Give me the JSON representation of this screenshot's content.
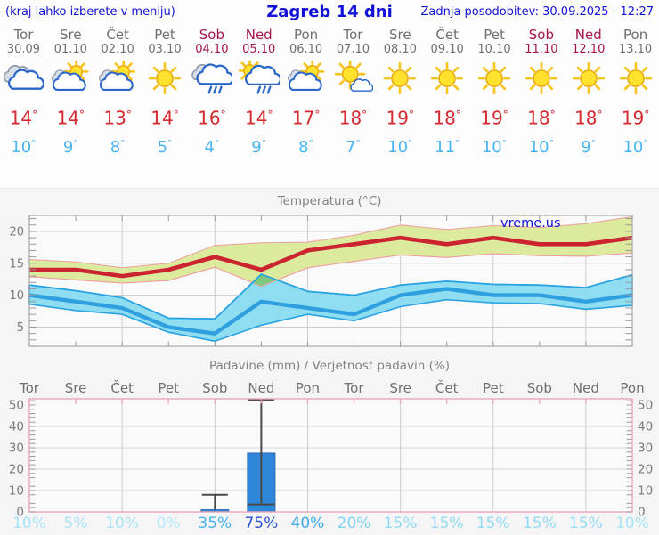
{
  "header": {
    "left_note": "(kraj lahko izberete v meniju)",
    "title": "Zagreb 14 dni",
    "updated": "Zadnja posodobitev: 30.09.2025 - 12:27"
  },
  "deg_mark": "°",
  "colors": {
    "accent_blue": "#1212d6",
    "weekday": "#6f6f6f",
    "weekend": "#a8154e",
    "temp_high": "#d5282f",
    "temp_low": "#49b4f0",
    "max_band": "#dcea9e",
    "max_band_edge": "#ee9e9e",
    "max_line": "#cb232f",
    "min_band": "#8eddf1",
    "min_band_edge": "#29a2e2",
    "min_line": "#2f9fe0",
    "overlap": "#7dc97d",
    "bar_fill": "#2f87da",
    "bar_edge": "#2367ae",
    "whisker": "#4a4a4a",
    "frame_temp": "#a8a8a8",
    "frame_precip": "#eda4ba",
    "grid": "#cdcdcd",
    "plot_bg": "#fafafa",
    "chart_text": "#7a7a7a",
    "tick": "#999999"
  },
  "forecast": {
    "days": [
      {
        "name": "Tor",
        "date": "30.09",
        "weekend": false,
        "icon": "cloudy",
        "hi": "14",
        "lo": "10"
      },
      {
        "name": "Sre",
        "date": "01.10",
        "weekend": false,
        "icon": "partly-cloudy",
        "hi": "14",
        "lo": "9"
      },
      {
        "name": "Čet",
        "date": "02.10",
        "weekend": false,
        "icon": "partly-cloudy",
        "hi": "13",
        "lo": "8"
      },
      {
        "name": "Pet",
        "date": "03.10",
        "weekend": false,
        "icon": "sunny",
        "hi": "14",
        "lo": "5"
      },
      {
        "name": "Sob",
        "date": "04.10",
        "weekend": true,
        "icon": "rain",
        "hi": "16",
        "lo": "4"
      },
      {
        "name": "Ned",
        "date": "05.10",
        "weekend": true,
        "icon": "sun-rain",
        "hi": "14",
        "lo": "9"
      },
      {
        "name": "Pon",
        "date": "06.10",
        "weekend": false,
        "icon": "partly-cloudy",
        "hi": "17",
        "lo": "8"
      },
      {
        "name": "Tor",
        "date": "07.10",
        "weekend": false,
        "icon": "mostly-sunny",
        "hi": "18",
        "lo": "7"
      },
      {
        "name": "Sre",
        "date": "08.10",
        "weekend": false,
        "icon": "sunny",
        "hi": "19",
        "lo": "10"
      },
      {
        "name": "Čet",
        "date": "09.10",
        "weekend": false,
        "icon": "sunny",
        "hi": "18",
        "lo": "11"
      },
      {
        "name": "Pet",
        "date": "10.10",
        "weekend": false,
        "icon": "sunny",
        "hi": "19",
        "lo": "10"
      },
      {
        "name": "Sob",
        "date": "11.10",
        "weekend": true,
        "icon": "sunny",
        "hi": "18",
        "lo": "10"
      },
      {
        "name": "Ned",
        "date": "12.10",
        "weekend": true,
        "icon": "sunny",
        "hi": "18",
        "lo": "9"
      },
      {
        "name": "Pon",
        "date": "13.10",
        "weekend": false,
        "icon": "sunny",
        "hi": "19",
        "lo": "10"
      }
    ]
  },
  "chart_data": [
    {
      "type": "line",
      "title": "Temperatura (°C)",
      "watermark": "vreme.us",
      "categories": [
        "Tor 30.09",
        "Sre 01.10",
        "Čet 02.10",
        "Pet 03.10",
        "Sob 04.10",
        "Ned 05.10",
        "Pon 06.10",
        "Tor 07.10",
        "Sre 08.10",
        "Čet 09.10",
        "Pet 10.10",
        "Sob 11.10",
        "Ned 12.10",
        "Pon 13.10"
      ],
      "ylim": [
        2,
        22.5
      ],
      "yticks": [
        5,
        10,
        15,
        20
      ],
      "grid_x_indices": [
        2,
        4,
        6,
        8,
        10,
        12
      ],
      "series": [
        {
          "name": "max_range_upper",
          "values": [
            15.6,
            15.2,
            14.3,
            15.0,
            17.8,
            18.2,
            18.3,
            19.4,
            21.0,
            20.3,
            20.9,
            20.6,
            21.2,
            22.3
          ]
        },
        {
          "name": "max_range_lower",
          "values": [
            12.9,
            12.4,
            11.9,
            12.3,
            14.4,
            11.4,
            14.3,
            15.3,
            16.3,
            15.9,
            16.5,
            16.2,
            16.1,
            16.6
          ]
        },
        {
          "name": "max_temp",
          "values": [
            14,
            14,
            13,
            14,
            16,
            14,
            17,
            18,
            19,
            18,
            19,
            18,
            18,
            19
          ]
        },
        {
          "name": "min_range_upper",
          "values": [
            11.6,
            10.7,
            9.6,
            6.4,
            6.3,
            13.3,
            10.6,
            10.0,
            11.6,
            12.2,
            11.7,
            11.6,
            11.2,
            13.2
          ]
        },
        {
          "name": "min_range_lower",
          "values": [
            8.6,
            7.6,
            7.0,
            4.2,
            2.8,
            5.3,
            7.0,
            6.0,
            8.2,
            9.3,
            8.8,
            8.7,
            7.8,
            8.4
          ]
        },
        {
          "name": "min_temp",
          "values": [
            10,
            9,
            8,
            5,
            4,
            9,
            8,
            7,
            10,
            11,
            10,
            10,
            9,
            10
          ]
        }
      ]
    },
    {
      "type": "bar",
      "title": "Padavine (mm) / Verjetnost padavin (%)",
      "categories": [
        "Tor",
        "Sre",
        "Čet",
        "Pet",
        "Sob",
        "Ned",
        "Pon",
        "Tor",
        "Sre",
        "Čet",
        "Pet",
        "Sob",
        "Ned",
        "Pon"
      ],
      "weekend_indices": [
        4,
        5,
        11,
        12
      ],
      "ylim": [
        0,
        52.9
      ],
      "yticks": [
        0,
        10,
        20,
        30,
        40,
        50
      ],
      "grid_x_indices": [
        2,
        4,
        6,
        8,
        10,
        12
      ],
      "values": [
        0,
        0,
        0,
        0,
        1,
        27.5,
        0,
        0,
        0,
        0,
        0,
        0,
        0,
        0
      ],
      "bars": [
        {
          "day_index": 4,
          "amount": 1,
          "whisker_low": 1,
          "whisker_high": 8,
          "median": null
        },
        {
          "day_index": 5,
          "amount": 27.5,
          "whisker_low": 3.5,
          "whisker_high": 52.5,
          "median": 3.5
        }
      ],
      "probabilities": [
        {
          "label": "10%",
          "color": "#a6e3f8"
        },
        {
          "label": "5%",
          "color": "#ace6f9"
        },
        {
          "label": "10%",
          "color": "#a6e3f8"
        },
        {
          "label": "0%",
          "color": "#b4eafb"
        },
        {
          "label": "35%",
          "color": "#49b3ed"
        },
        {
          "label": "75%",
          "color": "#2c52cf"
        },
        {
          "label": "40%",
          "color": "#41abe9"
        },
        {
          "label": "20%",
          "color": "#7fd2f2"
        },
        {
          "label": "15%",
          "color": "#92dbf5"
        },
        {
          "label": "15%",
          "color": "#92dbf5"
        },
        {
          "label": "15%",
          "color": "#92dbf5"
        },
        {
          "label": "15%",
          "color": "#92dbf5"
        },
        {
          "label": "15%",
          "color": "#92dbf5"
        },
        {
          "label": "10%",
          "color": "#a6e3f8"
        }
      ]
    }
  ]
}
